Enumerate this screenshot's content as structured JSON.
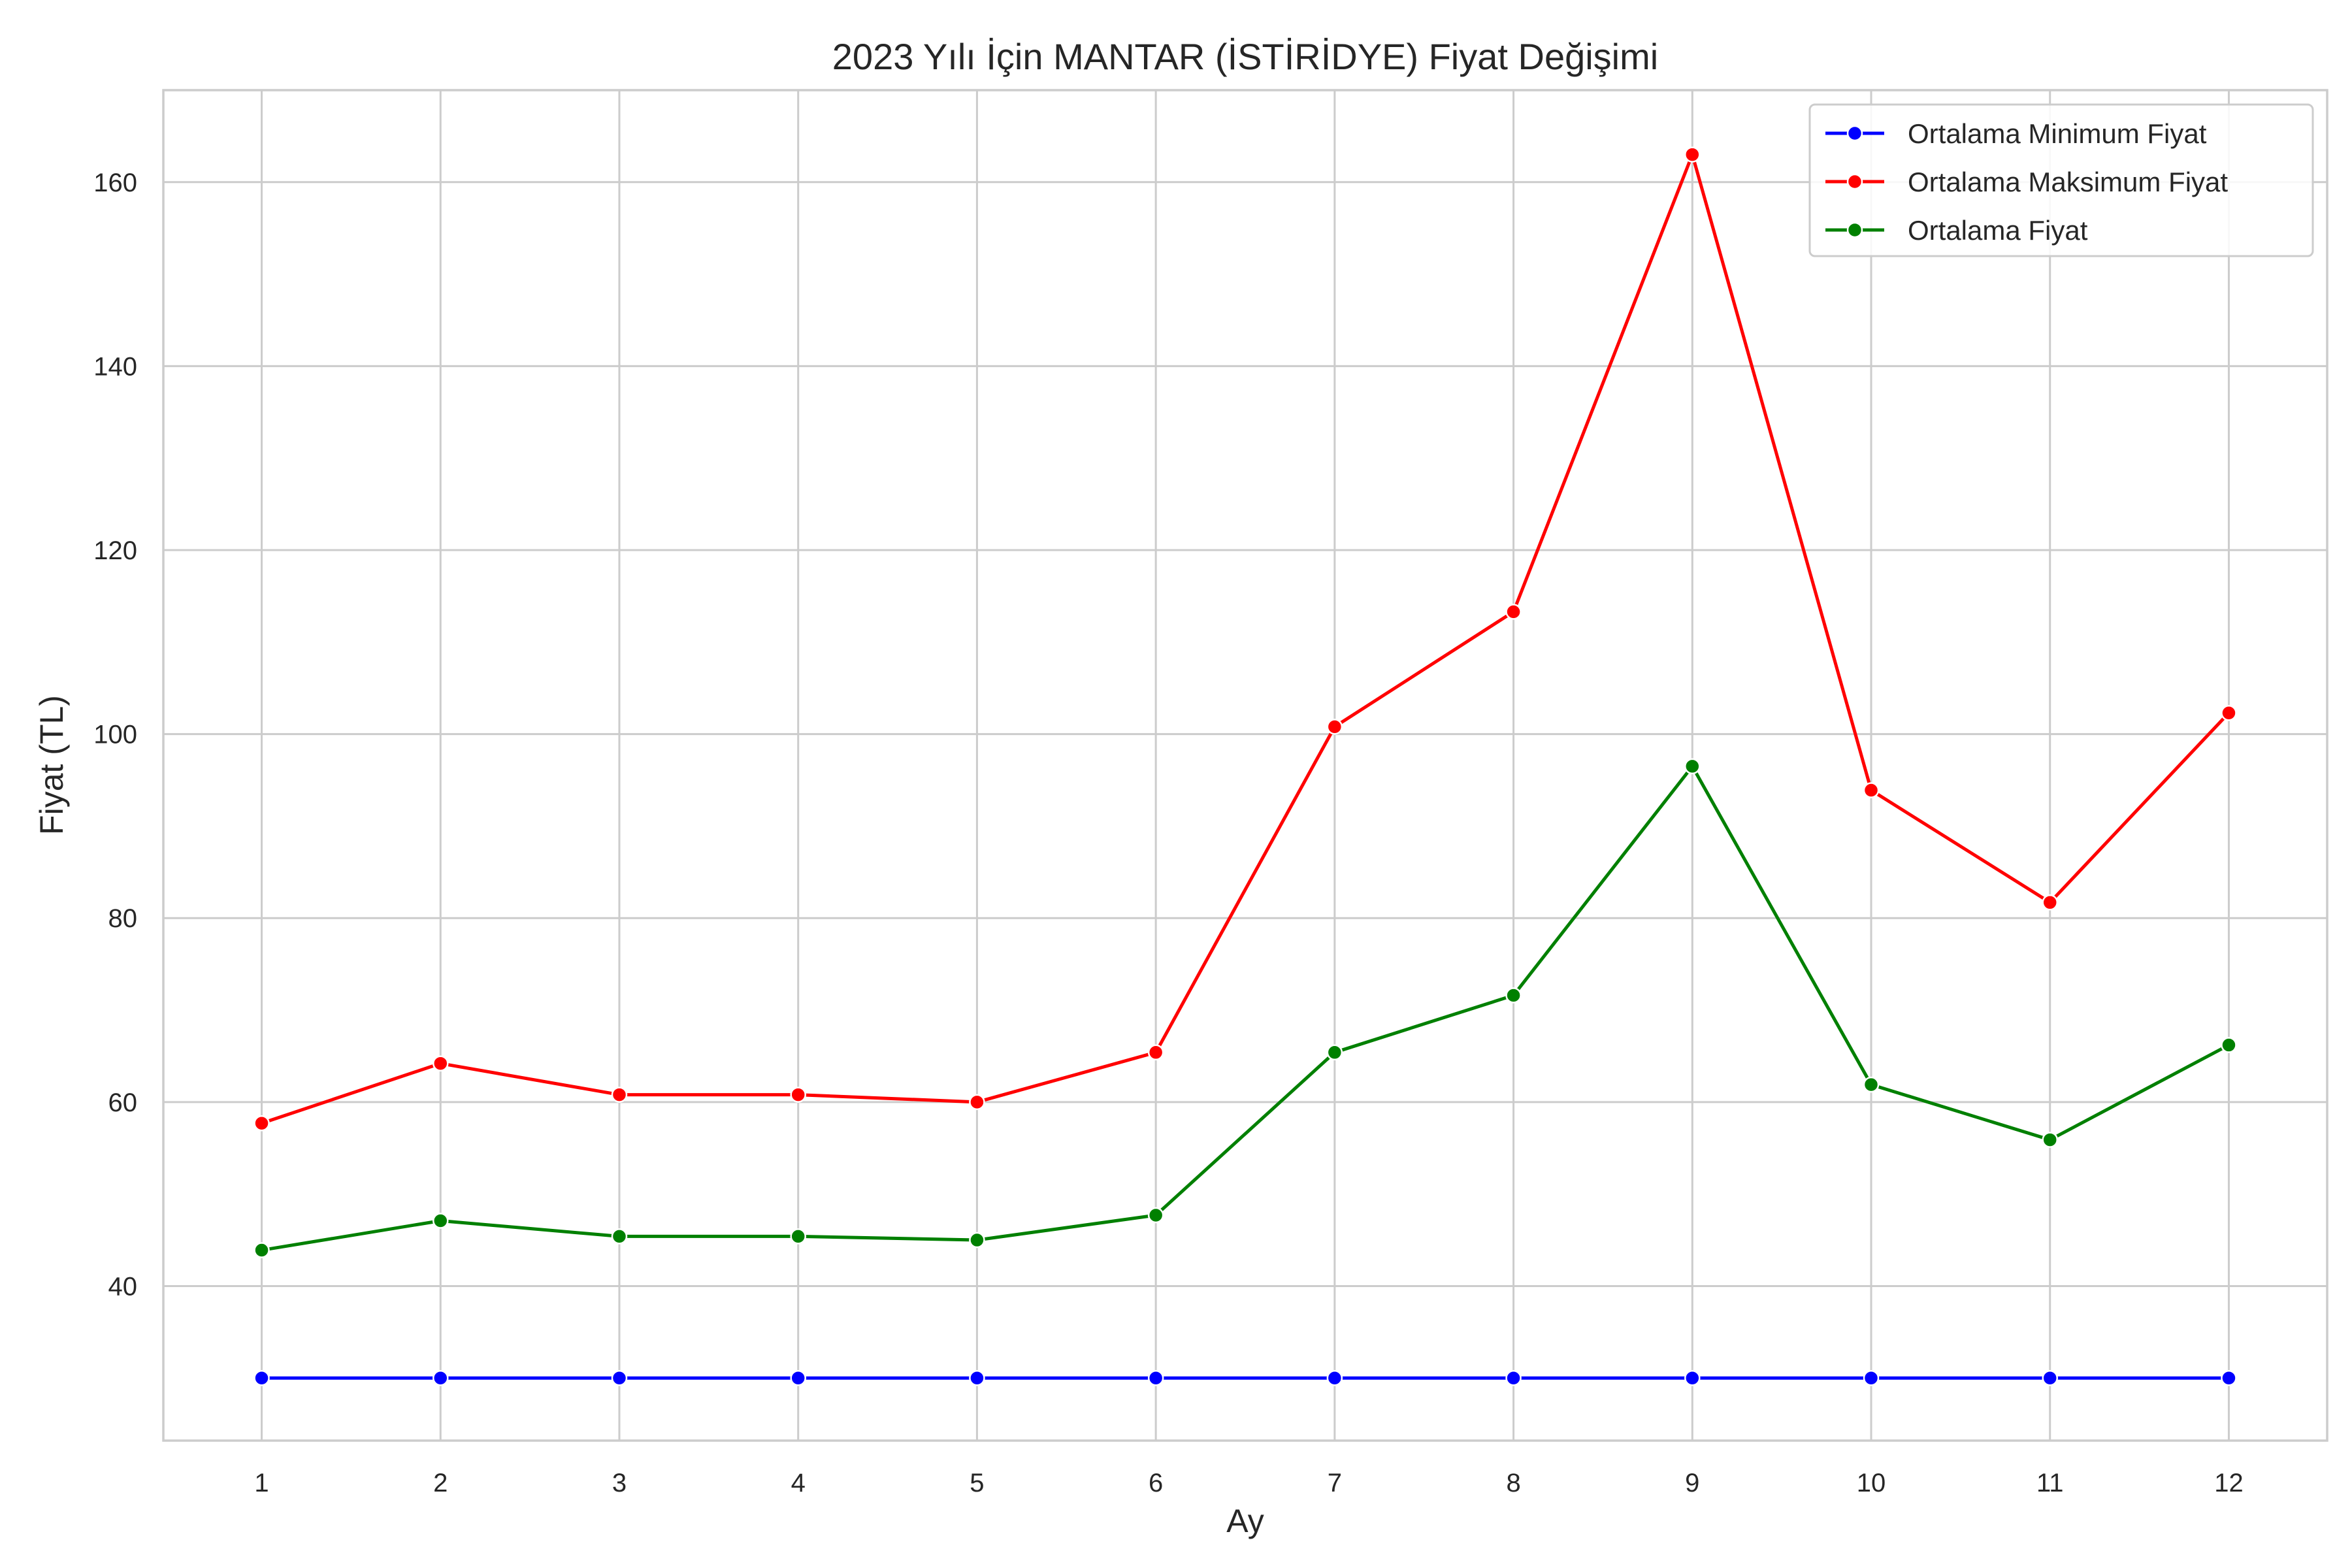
{
  "chart_data": {
    "type": "line",
    "title": "2023 Yılı İçin MANTAR (İSTİRİDYE) Fiyat Değişimi",
    "xlabel": "Ay",
    "ylabel": "Fiyat (TL)",
    "x": [
      1,
      2,
      3,
      4,
      5,
      6,
      7,
      8,
      9,
      10,
      11,
      12
    ],
    "xlim": [
      0.45,
      12.55
    ],
    "ylim": [
      23.2,
      170
    ],
    "yticks": [
      40,
      60,
      80,
      100,
      120,
      140,
      160
    ],
    "grid": true,
    "legend_position": "top-right",
    "series": [
      {
        "name": "Ortalama Minimum Fiyat",
        "color": "#0000ff",
        "values": [
          30,
          30,
          30,
          30,
          30,
          30,
          30,
          30,
          30,
          30,
          30,
          30
        ]
      },
      {
        "name": "Ortalama Maksimum Fiyat",
        "color": "#ff0000",
        "values": [
          57.7,
          64.2,
          60.8,
          60.8,
          60.0,
          65.4,
          100.8,
          113.3,
          163.0,
          93.9,
          81.7,
          102.3
        ]
      },
      {
        "name": "Ortalama Fiyat",
        "color": "#008000",
        "values": [
          43.9,
          47.1,
          45.4,
          45.4,
          45.0,
          47.7,
          65.4,
          71.6,
          96.5,
          61.9,
          55.9,
          66.2
        ]
      }
    ]
  }
}
